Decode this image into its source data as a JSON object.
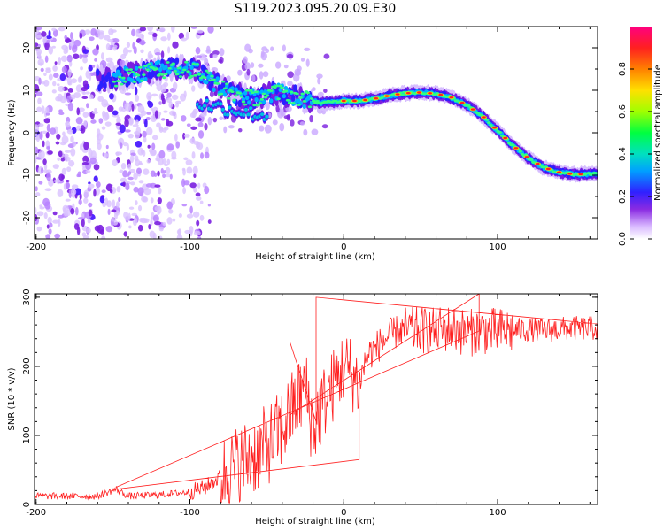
{
  "title": "S119.2023.095.20.09.E30",
  "chart_data": [
    {
      "type": "heatmap",
      "xlabel": "Height of straight line (km)",
      "ylabel": "Frequency (Hz)",
      "xlim": [
        -201,
        165
      ],
      "ylim": [
        -25,
        25
      ],
      "x_ticks": [
        -200,
        -100,
        0,
        100
      ],
      "y_ticks": [
        20,
        10,
        0,
        -10,
        -20
      ],
      "colorbar": {
        "label": "Normalized spectral amplitude",
        "range": [
          0,
          1
        ],
        "ticks": [
          0.0,
          0.2,
          0.4,
          0.6,
          0.8
        ]
      },
      "ridge": [
        {
          "x": -155,
          "y": 12.5
        },
        {
          "x": -140,
          "y": 13.5
        },
        {
          "x": -120,
          "y": 14.8
        },
        {
          "x": -105,
          "y": 15.2
        },
        {
          "x": -95,
          "y": 14.5
        },
        {
          "x": -85,
          "y": 12
        },
        {
          "x": -75,
          "y": 9.5
        },
        {
          "x": -60,
          "y": 8
        },
        {
          "x": -45,
          "y": 9.5
        },
        {
          "x": -30,
          "y": 8.5
        },
        {
          "x": -15,
          "y": 7
        },
        {
          "x": 0,
          "y": 7.5
        },
        {
          "x": 10,
          "y": 7.5
        },
        {
          "x": 20,
          "y": 8
        },
        {
          "x": 30,
          "y": 8.8
        },
        {
          "x": 40,
          "y": 9.3
        },
        {
          "x": 50,
          "y": 9.5
        },
        {
          "x": 60,
          "y": 9.2
        },
        {
          "x": 70,
          "y": 8.3
        },
        {
          "x": 80,
          "y": 6.5
        },
        {
          "x": 90,
          "y": 4
        },
        {
          "x": 100,
          "y": 0.5
        },
        {
          "x": 110,
          "y": -3
        },
        {
          "x": 120,
          "y": -6
        },
        {
          "x": 130,
          "y": -8.2
        },
        {
          "x": 140,
          "y": -9.3
        },
        {
          "x": 150,
          "y": -9.8
        },
        {
          "x": 160,
          "y": -9.7
        },
        {
          "x": 165,
          "y": -9.5
        }
      ]
    },
    {
      "type": "line",
      "xlabel": "Height of straight line (km)",
      "ylabel": "SNR (10 * v/v)",
      "xlim": [
        -201,
        165
      ],
      "ylim": [
        0,
        305
      ],
      "x_ticks": [
        -200,
        -100,
        0,
        100
      ],
      "y_ticks": [
        0,
        100,
        200,
        300
      ],
      "color": "#ff2020",
      "series": [
        {
          "x": [
            -200,
            -180,
            -160,
            -148,
            -140,
            -120,
            -100,
            -90,
            -80,
            -70,
            -60,
            -50,
            -40,
            -35,
            -30,
            -25,
            -20,
            -18,
            -15,
            -10,
            -5,
            0,
            5,
            10,
            15,
            20,
            25,
            30,
            35,
            40,
            50,
            60,
            70,
            80,
            85,
            90,
            100,
            110,
            120,
            130,
            140,
            150,
            160,
            165
          ],
          "values": [
            12,
            12,
            12,
            22,
            12,
            14,
            18,
            25,
            40,
            55,
            70,
            85,
            110,
            130,
            150,
            170,
            110,
            120,
            140,
            160,
            180,
            200,
            190,
            175,
            215,
            225,
            235,
            245,
            250,
            253,
            252,
            253,
            255,
            248,
            250,
            252,
            250,
            252,
            253,
            252,
            254,
            255,
            255,
            255
          ]
        }
      ]
    }
  ]
}
